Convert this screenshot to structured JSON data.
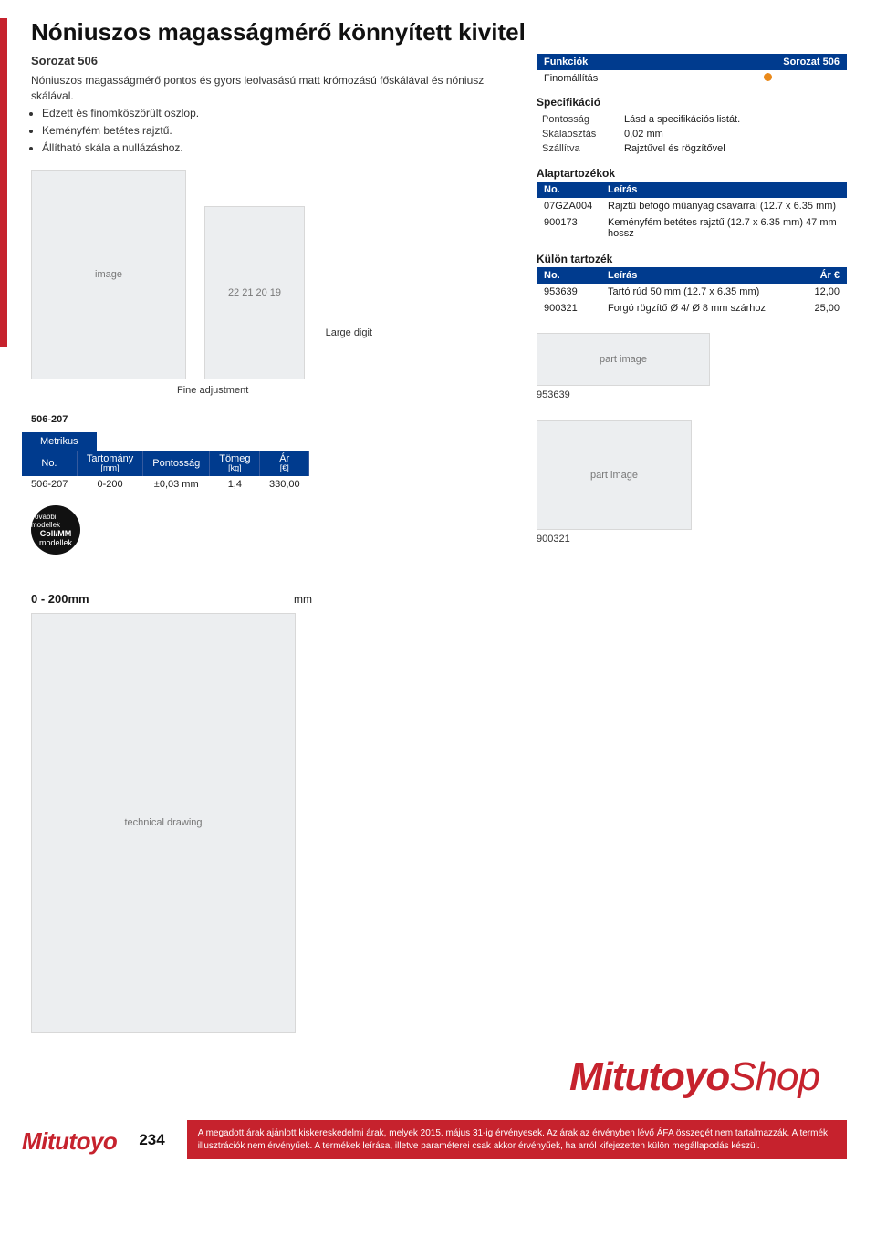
{
  "title": "Nóniuszos magasságmérő könnyített kivitel",
  "series_sub": "Sorozat 506",
  "description": "Nóniuszos magasságmérő pontos és gyors leolvasású matt krómozású főskálával és nóniusz skálával.",
  "bullets": [
    "Edzett és finomköszörült oszlop.",
    "Keményfém betétes rajztű.",
    "Állítható skála a nullázáshoz."
  ],
  "caption_large": "Large digit",
  "caption_fine": "Fine adjustment",
  "left_small_code": "506-207",
  "tab_label": "Metrikus",
  "main_table": {
    "headers": [
      "No.",
      "Tartomány",
      "Pontosság",
      "Tömeg",
      "Ár"
    ],
    "subheaders": [
      "",
      "[mm]",
      "",
      "[kg]",
      "[€]"
    ],
    "row": [
      "506-207",
      "0-200",
      "±0,03 mm",
      "1,4",
      "330,00"
    ]
  },
  "round_badge": {
    "top": "További modellek",
    "mid": "Coll/MM",
    "sub": "modellek"
  },
  "funk": {
    "header_l": "Funkciók",
    "header_r": "Sorozat 506",
    "row_label": "Finomállítás"
  },
  "spec_head": "Specifikáció",
  "spec_rows": [
    [
      "Pontosság",
      "Lásd a specifikációs listát."
    ],
    [
      "Skálaosztás",
      "0,02 mm"
    ],
    [
      "Szállítva",
      "Rajztűvel és rögzítővel"
    ]
  ],
  "alap_head": "Alaptartozékok",
  "alap_headers": [
    "No.",
    "Leírás"
  ],
  "alap_rows": [
    [
      "07GZA004",
      "Rajztű befogó műanyag csavarral (12.7 x 6.35 mm)"
    ],
    [
      "900173",
      "Keményfém betétes rajztű (12.7 x 6.35 mm) 47 mm hossz"
    ]
  ],
  "kulon_head": "Külön tartozék",
  "kulon_headers": [
    "No.",
    "Leírás",
    "Ár €"
  ],
  "kulon_rows": [
    [
      "953639",
      "Tartó rúd 50 mm (12.7 x 6.35 mm)",
      "12,00"
    ],
    [
      "900321",
      "Forgó rögzítő Ø 4/ Ø 8 mm szárhoz",
      "25,00"
    ]
  ],
  "part_code_1": "953639",
  "part_code_2": "900321",
  "dim_title": "0 - 200mm",
  "dim_mm": "mm",
  "brand_shop_a": "Mitutoyo",
  "brand_shop_b": "Shop",
  "brand_logo": "Mitutoyo",
  "page_no": "234",
  "foot_note": "A megadott árak ajánlott kiskereskedelmi árak, melyek 2015. május 31-ig érvényesek. Az árak az érvényben lévő ÁFA összegét nem tartalmazzák. A termék illusztrációk nem érvényűek. A termékek leírása, illetve paraméterei csak akkor érvényűek, ha arról kifejezetten külön megállapodás készül."
}
